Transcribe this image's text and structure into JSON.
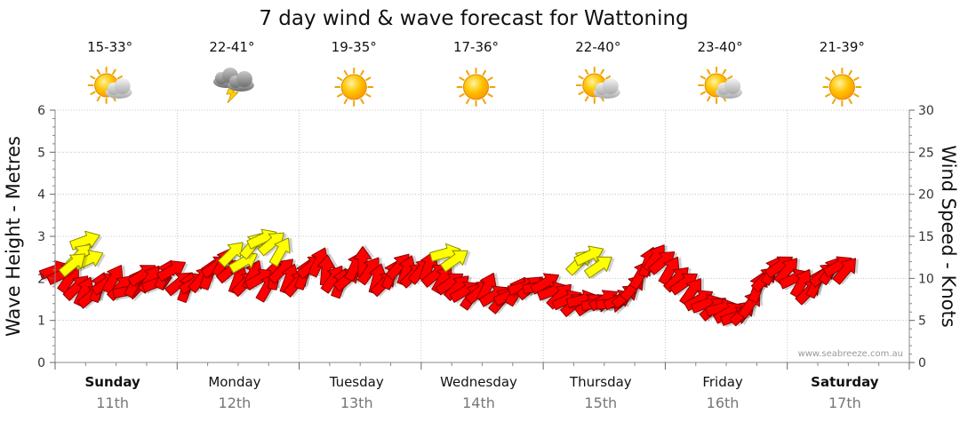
{
  "chart_data": {
    "type": "line",
    "title": "7 day wind & wave forecast for Wattoning",
    "y_left_label": "Wave Height - Metres",
    "y_right_label": "Wind Speed - Knots",
    "y_left_range": [
      0,
      6
    ],
    "y_right_range": [
      0,
      30
    ],
    "y_left_ticks": [
      "0",
      "1",
      "2",
      "3",
      "4",
      "5",
      "6"
    ],
    "y_right_ticks": [
      "0",
      "5",
      "10",
      "15",
      "20",
      "25",
      "30"
    ],
    "credit": "www.seabreeze.com.au",
    "grid": true,
    "days": [
      {
        "name": "Sunday",
        "date": "11th",
        "bold": true,
        "temp": "15-33°",
        "weather": "partly-cloudy-icon"
      },
      {
        "name": "Monday",
        "date": "12th",
        "bold": false,
        "temp": "22-41°",
        "weather": "thunderstorm-icon"
      },
      {
        "name": "Tuesday",
        "date": "13th",
        "bold": false,
        "temp": "19-35°",
        "weather": "sunny-icon"
      },
      {
        "name": "Wednesday",
        "date": "14th",
        "bold": false,
        "temp": "17-36°",
        "weather": "sunny-icon"
      },
      {
        "name": "Thursday",
        "date": "15th",
        "bold": false,
        "temp": "22-40°",
        "weather": "partly-cloudy-icon"
      },
      {
        "name": "Friday",
        "date": "16th",
        "bold": false,
        "temp": "23-40°",
        "weather": "partly-cloudy-icon"
      },
      {
        "name": "Saturday",
        "date": "17th",
        "bold": true,
        "temp": "21-39°",
        "weather": "sunny-icon"
      }
    ],
    "wind_series": {
      "name": "Wind",
      "color": "#ff0000",
      "unit": "knots",
      "points": [
        [
          0.0,
          11.0,
          250
        ],
        [
          0.06,
          10.5,
          245
        ],
        [
          0.12,
          10.0,
          215
        ],
        [
          0.18,
          9.0,
          225
        ],
        [
          0.24,
          8.5,
          205
        ],
        [
          0.3,
          8.0,
          230
        ],
        [
          0.36,
          9.0,
          200
        ],
        [
          0.42,
          9.5,
          235
        ],
        [
          0.48,
          10.0,
          210
        ],
        [
          0.54,
          9.0,
          225
        ],
        [
          0.6,
          8.5,
          260
        ],
        [
          0.66,
          9.5,
          210
        ],
        [
          0.72,
          10.5,
          235
        ],
        [
          0.78,
          10.0,
          215
        ],
        [
          0.84,
          9.5,
          250
        ],
        [
          0.9,
          10.5,
          205
        ],
        [
          0.96,
          11.0,
          240
        ],
        [
          1.02,
          9.5,
          230
        ],
        [
          1.08,
          9.0,
          200
        ],
        [
          1.14,
          9.5,
          240
        ],
        [
          1.2,
          10.0,
          220
        ],
        [
          1.26,
          10.5,
          200
        ],
        [
          1.32,
          11.5,
          235
        ],
        [
          1.38,
          12.0,
          210
        ],
        [
          1.44,
          11.0,
          230
        ],
        [
          1.5,
          10.0,
          200
        ],
        [
          1.56,
          9.5,
          225
        ],
        [
          1.62,
          10.5,
          205
        ],
        [
          1.68,
          10.0,
          240
        ],
        [
          1.74,
          9.0,
          210
        ],
        [
          1.8,
          10.5,
          190
        ],
        [
          1.86,
          11.0,
          225
        ],
        [
          1.92,
          10.0,
          200
        ],
        [
          1.98,
          9.5,
          220
        ],
        [
          2.04,
          10.5,
          200
        ],
        [
          2.1,
          11.5,
          230
        ],
        [
          2.16,
          12.0,
          205
        ],
        [
          2.22,
          11.0,
          185
        ],
        [
          2.28,
          10.0,
          215
        ],
        [
          2.34,
          9.5,
          200
        ],
        [
          2.4,
          10.0,
          230
        ],
        [
          2.46,
          11.5,
          205
        ],
        [
          2.52,
          12.0,
          180
        ],
        [
          2.58,
          11.0,
          215
        ],
        [
          2.64,
          10.0,
          195
        ],
        [
          2.7,
          9.5,
          225
        ],
        [
          2.76,
          10.5,
          205
        ],
        [
          2.82,
          11.5,
          220
        ],
        [
          2.88,
          11.0,
          200
        ],
        [
          2.94,
          10.5,
          225
        ],
        [
          3.0,
          11.0,
          220
        ],
        [
          3.06,
          11.5,
          200
        ],
        [
          3.12,
          10.5,
          230
        ],
        [
          3.18,
          10.0,
          210
        ],
        [
          3.24,
          9.5,
          235
        ],
        [
          3.3,
          9.0,
          225
        ],
        [
          3.36,
          8.5,
          240
        ],
        [
          3.42,
          8.0,
          215
        ],
        [
          3.48,
          8.5,
          230
        ],
        [
          3.54,
          9.0,
          205
        ],
        [
          3.6,
          8.0,
          240
        ],
        [
          3.66,
          7.5,
          220
        ],
        [
          3.72,
          8.0,
          245
        ],
        [
          3.78,
          8.5,
          210
        ],
        [
          3.84,
          9.0,
          255
        ],
        [
          3.9,
          9.0,
          230
        ],
        [
          3.96,
          9.0,
          260
        ],
        [
          4.02,
          9.5,
          240
        ],
        [
          4.08,
          8.5,
          250
        ],
        [
          4.14,
          8.0,
          225
        ],
        [
          4.2,
          7.5,
          245
        ],
        [
          4.26,
          7.0,
          230
        ],
        [
          4.32,
          7.5,
          255
        ],
        [
          4.38,
          7.0,
          235
        ],
        [
          4.44,
          7.0,
          260
        ],
        [
          4.5,
          7.5,
          240
        ],
        [
          4.56,
          7.0,
          265
        ],
        [
          4.62,
          7.5,
          245
        ],
        [
          4.68,
          8.0,
          230
        ],
        [
          4.74,
          9.0,
          220
        ],
        [
          4.8,
          10.5,
          210
        ],
        [
          4.86,
          12.0,
          200
        ],
        [
          4.92,
          12.5,
          215
        ],
        [
          4.98,
          12.0,
          230
        ],
        [
          5.04,
          11.0,
          210
        ],
        [
          5.1,
          10.0,
          225
        ],
        [
          5.16,
          9.5,
          235
        ],
        [
          5.22,
          8.5,
          215
        ],
        [
          5.28,
          7.5,
          240
        ],
        [
          5.34,
          7.0,
          250
        ],
        [
          5.4,
          6.5,
          230
        ],
        [
          5.46,
          6.5,
          255
        ],
        [
          5.52,
          6.0,
          240
        ],
        [
          5.58,
          5.5,
          250
        ],
        [
          5.64,
          6.0,
          225
        ],
        [
          5.7,
          7.0,
          215
        ],
        [
          5.76,
          9.0,
          200
        ],
        [
          5.82,
          10.0,
          225
        ],
        [
          5.88,
          11.0,
          210
        ],
        [
          5.94,
          11.5,
          235
        ],
        [
          6.0,
          11.0,
          220
        ],
        [
          6.06,
          10.0,
          245
        ],
        [
          6.12,
          9.5,
          210
        ],
        [
          6.18,
          8.5,
          225
        ],
        [
          6.24,
          9.5,
          205
        ],
        [
          6.3,
          10.5,
          230
        ],
        [
          6.36,
          11.0,
          215
        ],
        [
          6.42,
          11.5,
          240
        ],
        [
          6.48,
          11.0,
          220
        ]
      ]
    },
    "wave_series": {
      "name": "Waves",
      "color": "#ffff00",
      "unit": "metres",
      "points": [
        [
          0.25,
          2.9,
          250
        ],
        [
          0.2,
          2.55,
          225
        ],
        [
          0.28,
          2.45,
          245
        ],
        [
          0.15,
          2.35,
          230
        ],
        [
          1.45,
          2.6,
          225
        ],
        [
          1.55,
          2.4,
          240
        ],
        [
          1.62,
          2.8,
          220
        ],
        [
          1.7,
          2.95,
          245
        ],
        [
          1.78,
          2.85,
          230
        ],
        [
          1.85,
          2.65,
          210
        ],
        [
          3.2,
          2.6,
          255
        ],
        [
          3.28,
          2.45,
          235
        ],
        [
          4.3,
          2.4,
          225
        ],
        [
          4.38,
          2.55,
          245
        ],
        [
          4.46,
          2.3,
          235
        ]
      ]
    }
  }
}
